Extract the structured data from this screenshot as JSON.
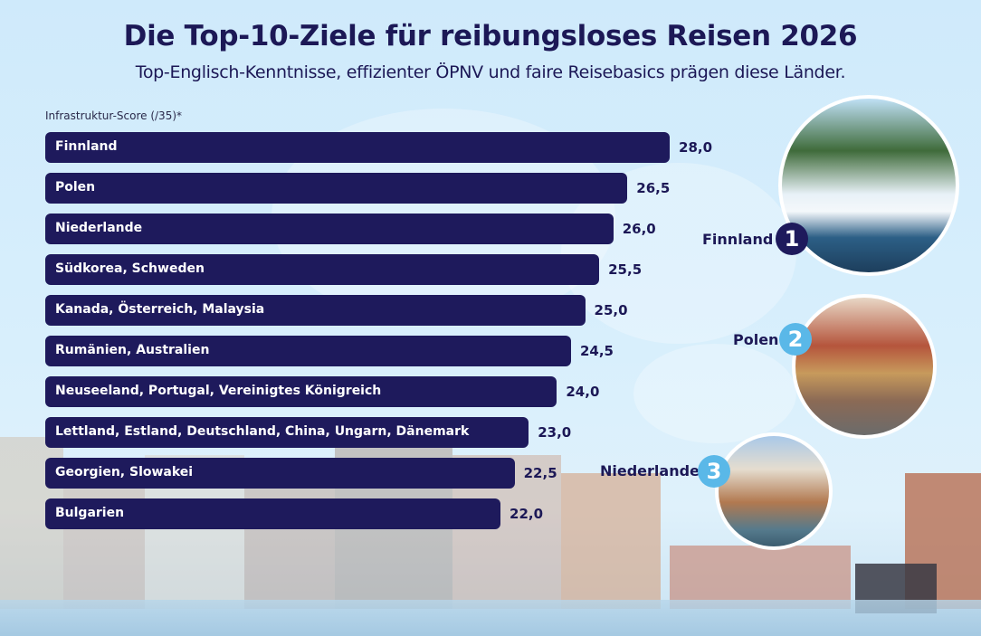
{
  "title": "Die Top-10-Ziele für reibungsloses Reisen 2026",
  "subtitle": "Top-Englisch-Kenntnisse, effizienter ÖPNV und faire Reisebasics prägen diese Länder.",
  "colors": {
    "bar": "#1e1a5c",
    "text": "#1c1856",
    "rank1": "#1e1a5c",
    "rank_other": "#5ab8e8",
    "background": "#d8effc"
  },
  "chart_data": {
    "type": "bar",
    "orientation": "horizontal",
    "xlabel": "Infrastruktur-Score (/35)*",
    "categories": [
      "Finnland",
      "Polen",
      "Niederlande",
      "Südkorea, Schweden",
      "Kanada, Österreich, Malaysia",
      "Rumänien, Australien",
      "Neuseeland, Portugal, Vereinigtes Königreich",
      "Lettland, Estland, Deutschland, China, Ungarn, Dänemark",
      "Georgien, Slowakei",
      "Bulgarien"
    ],
    "values": [
      28.0,
      26.5,
      26.0,
      25.5,
      25.0,
      24.5,
      24.0,
      23.0,
      22.5,
      22.0
    ],
    "value_labels": [
      "28,0",
      "26,5",
      "26,0",
      "25,5",
      "25,0",
      "24,5",
      "24,0",
      "23,0",
      "22,5",
      "22,0"
    ],
    "grid": false
  },
  "top3": [
    {
      "rank": "1",
      "name": "Finnland"
    },
    {
      "rank": "2",
      "name": "Polen"
    },
    {
      "rank": "3",
      "name": "Niederlande"
    }
  ]
}
